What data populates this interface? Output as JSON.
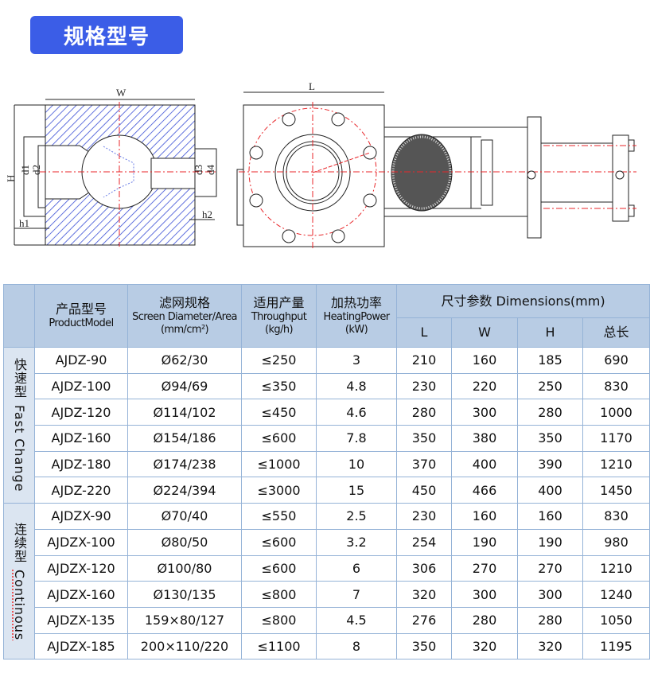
{
  "title": "规格型号",
  "drawing": {
    "labels": {
      "W": "W",
      "L": "L",
      "H": "H",
      "d1": "d1",
      "d2": "d2",
      "d3": "d3",
      "d4": "d4",
      "h1": "h1",
      "h2": "h2"
    },
    "hatch_color": "#3a4fd6",
    "centerline_color": "#e8262a"
  },
  "table": {
    "headers": {
      "model_cn": "产品型号",
      "model_en": "ProductModel",
      "screen_cn": "滤网规格",
      "screen_en": "Screen Diameter/Area",
      "screen_unit": "(mm/cm²)",
      "through_cn": "适用产量",
      "through_en": "Throughput",
      "through_unit": "(kg/h)",
      "heat_cn": "加热功率",
      "heat_en": "HeatingPower",
      "heat_unit": "(kW)",
      "dims": "尺寸参数 Dimensions(mm)",
      "L": "L",
      "W": "W",
      "H": "H",
      "total": "总长"
    },
    "groups": [
      {
        "label_cn": "快速型",
        "label_en": "Fast Change",
        "rows": [
          [
            "AJDZ-90",
            "Ø62/30",
            "≤250",
            "3",
            "210",
            "160",
            "185",
            "690"
          ],
          [
            "AJDZ-100",
            "Ø94/69",
            "≤350",
            "4.8",
            "230",
            "220",
            "250",
            "830"
          ],
          [
            "AJDZ-120",
            "Ø114/102",
            "≤450",
            "4.6",
            "280",
            "300",
            "280",
            "1000"
          ],
          [
            "AJDZ-160",
            "Ø154/186",
            "≤600",
            "7.8",
            "350",
            "380",
            "350",
            "1170"
          ],
          [
            "AJDZ-180",
            "Ø174/238",
            "≤1000",
            "10",
            "370",
            "400",
            "390",
            "1210"
          ],
          [
            "AJDZ-220",
            "Ø224/394",
            "≤3000",
            "15",
            "450",
            "466",
            "400",
            "1450"
          ]
        ]
      },
      {
        "label_cn": "连续型",
        "label_en": "Continous",
        "rows": [
          [
            "AJDZX-90",
            "Ø70/40",
            "≤550",
            "2.5",
            "230",
            "160",
            "160",
            "830"
          ],
          [
            "AJDZX-100",
            "Ø80/50",
            "≤600",
            "3.2",
            "254",
            "190",
            "190",
            "980"
          ],
          [
            "AJDZX-120",
            "Ø100/80",
            "≤600",
            "6",
            "306",
            "270",
            "270",
            "1210"
          ],
          [
            "AJDZX-160",
            "Ø130/135",
            "≤800",
            "7",
            "320",
            "300",
            "300",
            "1240"
          ],
          [
            "AJDZX-135",
            "159×80/127",
            "≤800",
            "4.5",
            "276",
            "280",
            "280",
            "1050"
          ],
          [
            "AJDZX-185",
            "200×110/220",
            "≤1100",
            "8",
            "350",
            "320",
            "320",
            "1195"
          ]
        ]
      }
    ]
  }
}
